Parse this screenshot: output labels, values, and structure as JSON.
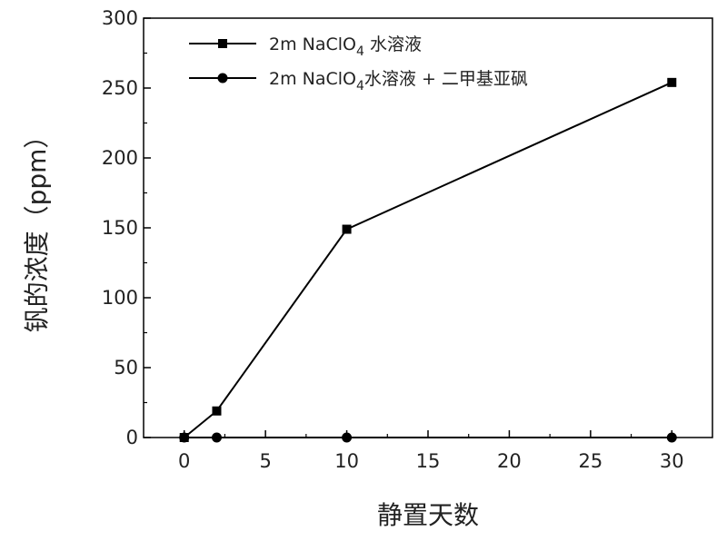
{
  "chart_data": {
    "type": "line",
    "xlabel": "静置天数",
    "ylabel": "钒的浓度（ppm）",
    "xlim": [
      -2.5,
      32.5
    ],
    "ylim": [
      0,
      300
    ],
    "xticks": [
      "0",
      "5",
      "10",
      "15",
      "20",
      "25",
      "30"
    ],
    "yticks": [
      "0",
      "50",
      "100",
      "150",
      "200",
      "250",
      "300"
    ],
    "grid": false,
    "legend_position": "top-left",
    "series": [
      {
        "name": "2m NaClO4 水溶液",
        "name_parts": [
          "2m NaClO",
          "4",
          " 水溶液"
        ],
        "marker": "square",
        "color": "#000000",
        "x": [
          0,
          2,
          10,
          30
        ],
        "y": [
          0,
          19,
          149,
          254
        ]
      },
      {
        "name": "2m NaClO4水溶液 + 二甲基亚砜",
        "name_parts": [
          "2m NaClO",
          "4",
          "水溶液 + 二甲基亚砜"
        ],
        "marker": "circle",
        "color": "#000000",
        "x": [
          0,
          2,
          10,
          30
        ],
        "y": [
          0,
          0,
          0,
          0
        ]
      }
    ]
  }
}
